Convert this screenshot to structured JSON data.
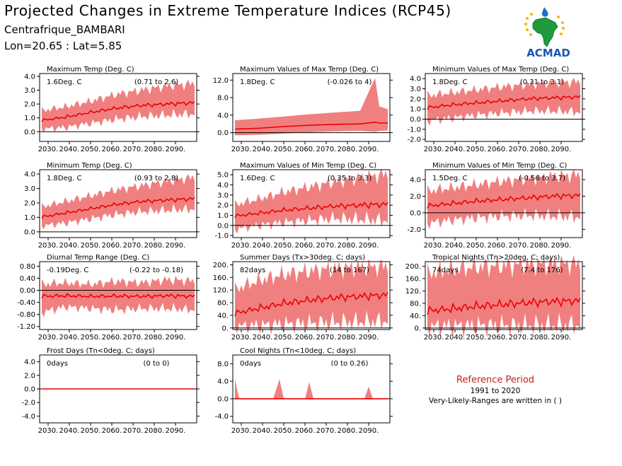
{
  "header": {
    "title": "Projected Changes in Extreme Temperature Indices (RCP45)",
    "location": "Centrafrique_BAMBARI",
    "coords": "Lon=20.65 : Lat=5.85"
  },
  "logo": {
    "text": "ACMAD",
    "icon": "africa-map-sun-drop-logo"
  },
  "colors": {
    "band": "#f08080",
    "line": "#ee0000",
    "zero": "#000000",
    "ref_title": "#d01818"
  },
  "reference": {
    "title": "Reference Period",
    "years": "1991 to 2020",
    "note": "Very-Likely-Ranges are written in ( )"
  },
  "chart_data": [
    {
      "type": "area",
      "title": "Maximum Temp (Deg. C)",
      "value": "1.6Deg. C",
      "range": "(0.71 to 2.6)",
      "xlim": [
        2026,
        2100
      ],
      "ylim": [
        -0.7,
        4.2
      ],
      "yticks": [
        {
          "v": 4.0,
          "l": "4.0"
        },
        {
          "v": 3.0,
          "l": "3.0"
        },
        {
          "v": 2.0,
          "l": "2.0"
        },
        {
          "v": 1.0,
          "l": "1.0"
        },
        {
          "v": 0.0,
          "l": "0.0"
        }
      ],
      "xticks": [
        "2030.",
        "2040.",
        "2050.",
        "2060.",
        "2070.",
        "2080.",
        "2090."
      ],
      "x": [
        2026,
        2038,
        2050,
        2062,
        2074,
        2086,
        2100
      ],
      "mean": [
        0.8,
        1.05,
        1.4,
        1.7,
        1.9,
        2.0,
        2.1
      ],
      "low": [
        0.2,
        0.3,
        0.6,
        0.9,
        1.1,
        1.2,
        1.3
      ],
      "high": [
        1.5,
        1.8,
        2.2,
        2.7,
        3.0,
        3.3,
        3.5
      ]
    },
    {
      "type": "area",
      "title": "Maximum Values of Max Temp (Deg. C)",
      "value": "1.8Deg. C",
      "range": "(-0.026 to 4)",
      "xlim": [
        2026,
        2100
      ],
      "ylim": [
        -2.0,
        13.5
      ],
      "yticks": [
        {
          "v": 12,
          "l": "12.0"
        },
        {
          "v": 8,
          "l": "8.0"
        },
        {
          "v": 4,
          "l": "4.0"
        },
        {
          "v": 0,
          "l": "0.0"
        }
      ],
      "xticks": [
        "2030.",
        "2040.",
        "2050.",
        "2060.",
        "2070.",
        "2080.",
        "2090."
      ],
      "x": [
        2026,
        2038,
        2050,
        2062,
        2074,
        2086,
        2093,
        2095,
        2100
      ],
      "mean": [
        0.8,
        1.0,
        1.4,
        1.7,
        1.9,
        2.0,
        2.4,
        2.2,
        2.2
      ],
      "low": [
        -0.6,
        -0.5,
        -0.2,
        0.1,
        0.3,
        0.4,
        0.2,
        0.4,
        0.5
      ],
      "high": [
        2.8,
        3.2,
        3.7,
        4.2,
        4.6,
        5.0,
        12.5,
        6.0,
        5.2
      ]
    },
    {
      "type": "area",
      "title": "Minimum Values of Max Temp (Deg. C)",
      "value": "1.8Deg. C",
      "range": "(0.31 to 3.1)",
      "xlim": [
        2026,
        2100
      ],
      "ylim": [
        -2.2,
        4.5
      ],
      "yticks": [
        {
          "v": 4,
          "l": "4.0"
        },
        {
          "v": 3,
          "l": "3.0"
        },
        {
          "v": 2,
          "l": "2.0"
        },
        {
          "v": 1,
          "l": "1.0"
        },
        {
          "v": 0,
          "l": "0.0"
        },
        {
          "v": -1,
          "l": "-1.0"
        },
        {
          "v": -2,
          "l": "-2.0"
        }
      ],
      "xticks": [
        "2030.",
        "2040.",
        "2050.",
        "2060.",
        "2070.",
        "2080.",
        "2090."
      ],
      "x": [
        2026,
        2038,
        2050,
        2062,
        2074,
        2086,
        2100
      ],
      "mean": [
        1.1,
        1.4,
        1.6,
        1.8,
        2.0,
        2.1,
        2.2
      ],
      "low": [
        -0.2,
        0.1,
        0.4,
        0.6,
        0.8,
        0.8,
        0.7
      ],
      "high": [
        2.3,
        2.6,
        2.9,
        3.2,
        3.4,
        3.6,
        3.7
      ]
    },
    {
      "type": "area",
      "title": "Minimum Temp (Deg. C)",
      "value": "1.8Deg. C",
      "range": "(0.93 to 2.8)",
      "xlim": [
        2026,
        2100
      ],
      "ylim": [
        -0.4,
        4.3
      ],
      "yticks": [
        {
          "v": 4.0,
          "l": "4.0"
        },
        {
          "v": 3.0,
          "l": "3.0"
        },
        {
          "v": 2.0,
          "l": "2.0"
        },
        {
          "v": 1.0,
          "l": "1.0"
        },
        {
          "v": 0.0,
          "l": "0.0"
        }
      ],
      "xticks": [
        "2030.",
        "2040.",
        "2050.",
        "2060.",
        "2070.",
        "2080.",
        "2090."
      ],
      "x": [
        2026,
        2038,
        2050,
        2062,
        2074,
        2086,
        2100
      ],
      "mean": [
        1.0,
        1.3,
        1.6,
        1.9,
        2.1,
        2.2,
        2.3
      ],
      "low": [
        0.4,
        0.6,
        0.9,
        1.2,
        1.4,
        1.5,
        1.6
      ],
      "high": [
        1.7,
        2.1,
        2.5,
        2.9,
        3.2,
        3.5,
        3.8
      ]
    },
    {
      "type": "area",
      "title": "Maximum Values of Min Temp (Deg. C)",
      "value": "1.6Deg. C",
      "range": "(0.35 to 3.3)",
      "xlim": [
        2026,
        2100
      ],
      "ylim": [
        -1.2,
        5.5
      ],
      "yticks": [
        {
          "v": 5,
          "l": "5.0"
        },
        {
          "v": 4,
          "l": "4.0"
        },
        {
          "v": 3,
          "l": "3.0"
        },
        {
          "v": 2,
          "l": "2.0"
        },
        {
          "v": 1,
          "l": "1.0"
        },
        {
          "v": 0,
          "l": "0.0"
        },
        {
          "v": -1,
          "l": "-1.0"
        }
      ],
      "xticks": [
        "2030.",
        "2040.",
        "2050.",
        "2060.",
        "2070.",
        "2080.",
        "2090."
      ],
      "x": [
        2026,
        2038,
        2050,
        2062,
        2074,
        2086,
        2100
      ],
      "mean": [
        0.9,
        1.2,
        1.5,
        1.7,
        1.9,
        2.0,
        2.1
      ],
      "low": [
        -0.4,
        0.0,
        0.3,
        0.5,
        0.7,
        0.6,
        0.5
      ],
      "high": [
        2.0,
        2.6,
        3.3,
        3.8,
        4.3,
        4.7,
        5.1
      ]
    },
    {
      "type": "area",
      "title": "Minimum Values of Min Temp (Deg. C)",
      "value": "1.5Deg. C",
      "range": "(-0.56 to 3.7)",
      "xlim": [
        2026,
        2100
      ],
      "ylim": [
        -3.0,
        5.2
      ],
      "yticks": [
        {
          "v": 4,
          "l": "4.0"
        },
        {
          "v": 2,
          "l": "2.0"
        },
        {
          "v": 0,
          "l": "0.0"
        },
        {
          "v": -2,
          "l": "-2.0"
        }
      ],
      "xticks": [
        "2030.",
        "2040.",
        "2050.",
        "2060.",
        "2070.",
        "2080.",
        "2090."
      ],
      "x": [
        2026,
        2038,
        2050,
        2062,
        2074,
        2086,
        2100
      ],
      "mean": [
        0.8,
        1.1,
        1.4,
        1.6,
        1.8,
        2.0,
        2.1
      ],
      "low": [
        -1.3,
        -0.9,
        -0.6,
        -0.4,
        -0.3,
        -0.4,
        -0.5
      ],
      "high": [
        2.6,
        3.0,
        3.4,
        3.8,
        4.1,
        4.4,
        4.6
      ]
    },
    {
      "type": "area",
      "title": "Diurnal Temp Range (Deg. C)",
      "value": "-0.19Deg. C",
      "range": "(-0.22 to -0.18)",
      "xlim": [
        2026,
        2100
      ],
      "ylim": [
        -1.3,
        0.95
      ],
      "yticks": [
        {
          "v": 0.8,
          "l": "0.80"
        },
        {
          "v": 0.4,
          "l": "0.40"
        },
        {
          "v": 0.0,
          "l": "0.00"
        },
        {
          "v": -0.4,
          "l": "-0.40"
        },
        {
          "v": -0.8,
          "l": "-0.80"
        },
        {
          "v": -1.2,
          "l": "-1.20"
        }
      ],
      "xticks": [
        "2030.",
        "2040.",
        "2050.",
        "2060.",
        "2070.",
        "2080.",
        "2090."
      ],
      "x": [
        2026,
        2038,
        2050,
        2062,
        2074,
        2086,
        2100
      ],
      "mean": [
        -0.2,
        -0.18,
        -0.2,
        -0.19,
        -0.2,
        -0.18,
        -0.2
      ],
      "low": [
        -0.75,
        -0.55,
        -0.6,
        -0.65,
        -0.6,
        -0.6,
        -0.65
      ],
      "high": [
        0.2,
        0.25,
        0.2,
        0.3,
        0.25,
        0.35,
        0.3
      ]
    },
    {
      "type": "area",
      "title": "Summer Days (Tx>30deg. C; days)",
      "value": "82days",
      "range": "(14 to 167)",
      "xlim": [
        2026,
        2100
      ],
      "ylim": [
        -5,
        210
      ],
      "yticks": [
        {
          "v": 200,
          "l": "200."
        },
        {
          "v": 160,
          "l": "160."
        },
        {
          "v": 120,
          "l": "120."
        },
        {
          "v": 80,
          "l": "80."
        },
        {
          "v": 40,
          "l": "40."
        },
        {
          "v": 0,
          "l": "0."
        }
      ],
      "xticks": [
        "2030.",
        "2040.",
        "2050.",
        "2060.",
        "2070.",
        "2080.",
        "2090."
      ],
      "x": [
        2026,
        2038,
        2050,
        2062,
        2074,
        2086,
        2100
      ],
      "mean": [
        45,
        62,
        78,
        88,
        96,
        100,
        105
      ],
      "low": [
        5,
        8,
        12,
        15,
        18,
        20,
        22
      ],
      "high": [
        120,
        150,
        170,
        180,
        188,
        192,
        195
      ]
    },
    {
      "type": "area",
      "title": "Tropical Nights (Tn>20deg. C; days)",
      "value": "74days",
      "range": "(7.4 to 176)",
      "xlim": [
        2026,
        2100
      ],
      "ylim": [
        -5,
        215
      ],
      "yticks": [
        {
          "v": 200,
          "l": "200."
        },
        {
          "v": 160,
          "l": "160."
        },
        {
          "v": 120,
          "l": "120."
        },
        {
          "v": 80,
          "l": "80."
        },
        {
          "v": 40,
          "l": "40."
        },
        {
          "v": 0,
          "l": "0."
        }
      ],
      "xticks": [
        "2030.",
        "2040.",
        "2050.",
        "2060.",
        "2070.",
        "2080.",
        "2090."
      ],
      "x": [
        2026,
        2038,
        2050,
        2062,
        2074,
        2086,
        2100
      ],
      "mean": [
        55,
        62,
        70,
        76,
        82,
        86,
        88
      ],
      "low": [
        5,
        6,
        7,
        8,
        9,
        10,
        10
      ],
      "high": [
        175,
        190,
        198,
        202,
        205,
        207,
        208
      ]
    },
    {
      "type": "area",
      "title": "Frost Days (Tn<0deg. C; days)",
      "value": "0days",
      "range": "(0 to 0)",
      "xlim": [
        2026,
        2100
      ],
      "ylim": [
        -5,
        5
      ],
      "yticks": [
        {
          "v": 4,
          "l": "4.0"
        },
        {
          "v": 2,
          "l": "2.0"
        },
        {
          "v": 0,
          "l": "0.0"
        },
        {
          "v": -2,
          "l": "-2.0"
        },
        {
          "v": -4,
          "l": "-4.0"
        }
      ],
      "xticks": [
        "2030.",
        "2040.",
        "2050.",
        "2060.",
        "2070.",
        "2080.",
        "2090."
      ],
      "x": [
        2026,
        2100
      ],
      "mean": [
        0,
        0
      ],
      "low": [
        0,
        0
      ],
      "high": [
        0,
        0
      ]
    },
    {
      "type": "area",
      "title": "Cool Nights (Tn<10deg. C; days)",
      "value": "0days",
      "range": "(0 to 0.26)",
      "xlim": [
        2026,
        2100
      ],
      "ylim": [
        -5.5,
        10
      ],
      "yticks": [
        {
          "v": 8,
          "l": "8.0"
        },
        {
          "v": 4,
          "l": "4.0"
        },
        {
          "v": 0,
          "l": "0.0"
        },
        {
          "v": -4,
          "l": "-4.0"
        }
      ],
      "xticks": [
        "2030.",
        "2040.",
        "2050.",
        "2060.",
        "2070.",
        "2080.",
        "2090."
      ],
      "x": [
        2026,
        2027,
        2029,
        2045,
        2048,
        2050,
        2060,
        2062,
        2064,
        2088,
        2090,
        2092,
        2100
      ],
      "mean": [
        0,
        0,
        0,
        0,
        0,
        0,
        0,
        0,
        0,
        0,
        0,
        0,
        0
      ],
      "low": [
        0,
        0,
        0,
        0,
        0,
        0,
        0,
        0,
        0,
        0,
        0,
        0,
        0
      ],
      "high": [
        0,
        4.5,
        0,
        0,
        4.5,
        0,
        0,
        3.8,
        0,
        0,
        2.8,
        0,
        0
      ]
    }
  ]
}
